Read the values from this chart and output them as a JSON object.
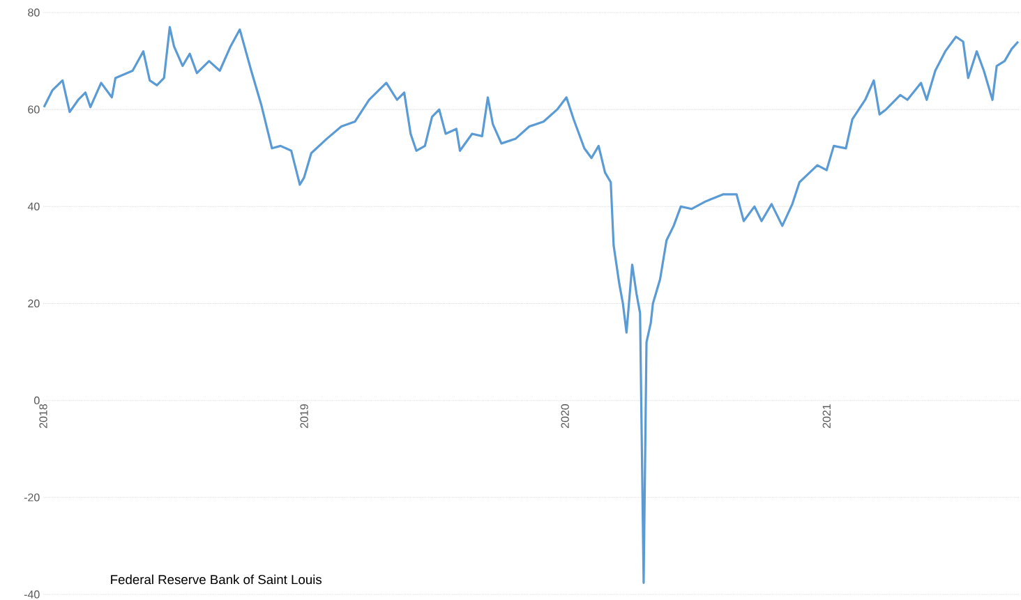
{
  "chart_data": {
    "type": "line",
    "annotations": [
      "Federal Reserve Bank of Saint Louis"
    ],
    "x": [
      "2018-01-02",
      "2018-01-14",
      "2018-01-28",
      "2018-02-07",
      "2018-02-19",
      "2018-03-01",
      "2018-03-08",
      "2018-03-23",
      "2018-04-07",
      "2018-04-12",
      "2018-05-06",
      "2018-05-21",
      "2018-05-30",
      "2018-06-09",
      "2018-06-19",
      "2018-06-27",
      "2018-07-03",
      "2018-07-15",
      "2018-07-25",
      "2018-08-04",
      "2018-08-21",
      "2018-09-05",
      "2018-09-20",
      "2018-10-03",
      "2018-10-19",
      "2018-11-02",
      "2018-11-17",
      "2018-11-29",
      "2018-12-14",
      "2018-12-26",
      "2019-01-01",
      "2019-01-11",
      "2019-02-02",
      "2019-02-22",
      "2019-03-13",
      "2019-04-02",
      "2019-04-19",
      "2019-04-26",
      "2019-05-11",
      "2019-05-21",
      "2019-05-30",
      "2019-06-07",
      "2019-06-19",
      "2019-06-29",
      "2019-07-09",
      "2019-07-18",
      "2019-08-02",
      "2019-08-07",
      "2019-08-24",
      "2019-09-07",
      "2019-09-15",
      "2019-09-22",
      "2019-10-04",
      "2019-10-24",
      "2019-11-12",
      "2019-12-02",
      "2019-12-21",
      "2020-01-03",
      "2020-01-13",
      "2020-01-28",
      "2020-02-07",
      "2020-02-17",
      "2020-02-26",
      "2020-03-05",
      "2020-03-09",
      "2020-03-17",
      "2020-03-22",
      "2020-03-27",
      "2020-04-04",
      "2020-04-10",
      "2020-04-15",
      "2020-04-20",
      "2020-04-24",
      "2020-04-30",
      "2020-05-03",
      "2020-05-13",
      "2020-05-22",
      "2020-06-01",
      "2020-06-11",
      "2020-06-26",
      "2020-07-15",
      "2020-08-09",
      "2020-08-28",
      "2020-09-07",
      "2020-09-22",
      "2020-10-02",
      "2020-10-16",
      "2020-10-31",
      "2020-11-14",
      "2020-11-24",
      "2020-12-19",
      "2021-01-01",
      "2021-01-11",
      "2021-01-28",
      "2021-02-06",
      "2021-02-24",
      "2021-03-08",
      "2021-03-16",
      "2021-03-25",
      "2021-04-14",
      "2021-04-24",
      "2021-05-13",
      "2021-05-21",
      "2021-06-02",
      "2021-06-16",
      "2021-07-01",
      "2021-07-11",
      "2021-07-18",
      "2021-07-30",
      "2021-08-09",
      "2021-08-21",
      "2021-08-27",
      "2021-09-07",
      "2021-09-17",
      "2021-09-26"
    ],
    "series": [
      {
        "color": "#5b9bd5",
        "values": [
          60.5,
          64,
          66,
          59.5,
          62,
          63.5,
          60.5,
          65.5,
          62.5,
          66.5,
          68,
          72,
          66,
          65,
          66.5,
          77,
          73,
          69,
          71.5,
          67.5,
          70,
          68,
          73,
          76.5,
          68,
          61,
          52,
          52.5,
          51.5,
          44.5,
          46,
          51,
          54,
          56.5,
          57.5,
          62,
          64.5,
          65.5,
          62,
          63.5,
          55,
          51.5,
          52.5,
          58.5,
          60,
          55,
          56,
          51.5,
          55,
          54.5,
          62.5,
          57,
          53,
          54,
          56.5,
          57.5,
          60,
          62.5,
          58,
          52,
          50,
          52.5,
          47,
          45,
          32,
          24,
          20,
          14,
          28,
          22,
          18,
          -37.6,
          12,
          16,
          20,
          25,
          33,
          36,
          40,
          39.5,
          41,
          42.5,
          42.5,
          37,
          40,
          37,
          40.5,
          36,
          40.5,
          45,
          48.5,
          47.5,
          52.5,
          52,
          58,
          62,
          66,
          59,
          60,
          63,
          62,
          65.5,
          62,
          68,
          72,
          75,
          74,
          66.5,
          72,
          68,
          62,
          69,
          70,
          72.5,
          74
        ]
      }
    ],
    "xlim": [
      "2018-01-01",
      "2021-09-28"
    ],
    "xticks": [
      {
        "value": "2018-01-01",
        "label": "2018"
      },
      {
        "value": "2019-01-01",
        "label": "2019"
      },
      {
        "value": "2020-01-01",
        "label": "2020"
      },
      {
        "value": "2021-01-01",
        "label": "2021"
      }
    ],
    "ylim": [
      -40,
      80
    ],
    "yticks": [
      -40,
      -20,
      0,
      20,
      40,
      60,
      80
    ],
    "grid": "y"
  }
}
